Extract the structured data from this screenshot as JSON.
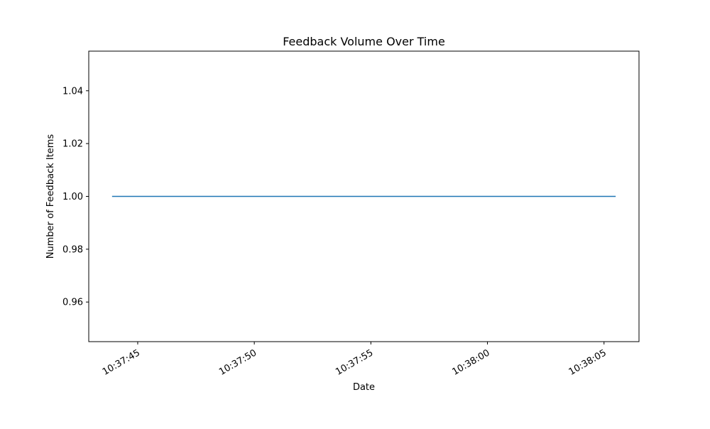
{
  "chart_data": {
    "type": "line",
    "title": "Feedback Volume Over Time",
    "xlabel": "Date",
    "ylabel": "Number of Feedback Items",
    "x_ticks": [
      "10:37:45",
      "10:37:50",
      "10:37:55",
      "10:38:00",
      "10:38:05"
    ],
    "y_ticks": [
      "0.96",
      "0.98",
      "1.00",
      "1.02",
      "1.04"
    ],
    "xlim": [
      "10:37:42.9",
      "10:38:06.5"
    ],
    "ylim": [
      0.945,
      1.055
    ],
    "grid": false,
    "series": [
      {
        "color": "#1f77b4",
        "x": [
          "10:37:43.9",
          "10:38:05.5"
        ],
        "y": [
          1.0,
          1.0
        ]
      }
    ]
  }
}
